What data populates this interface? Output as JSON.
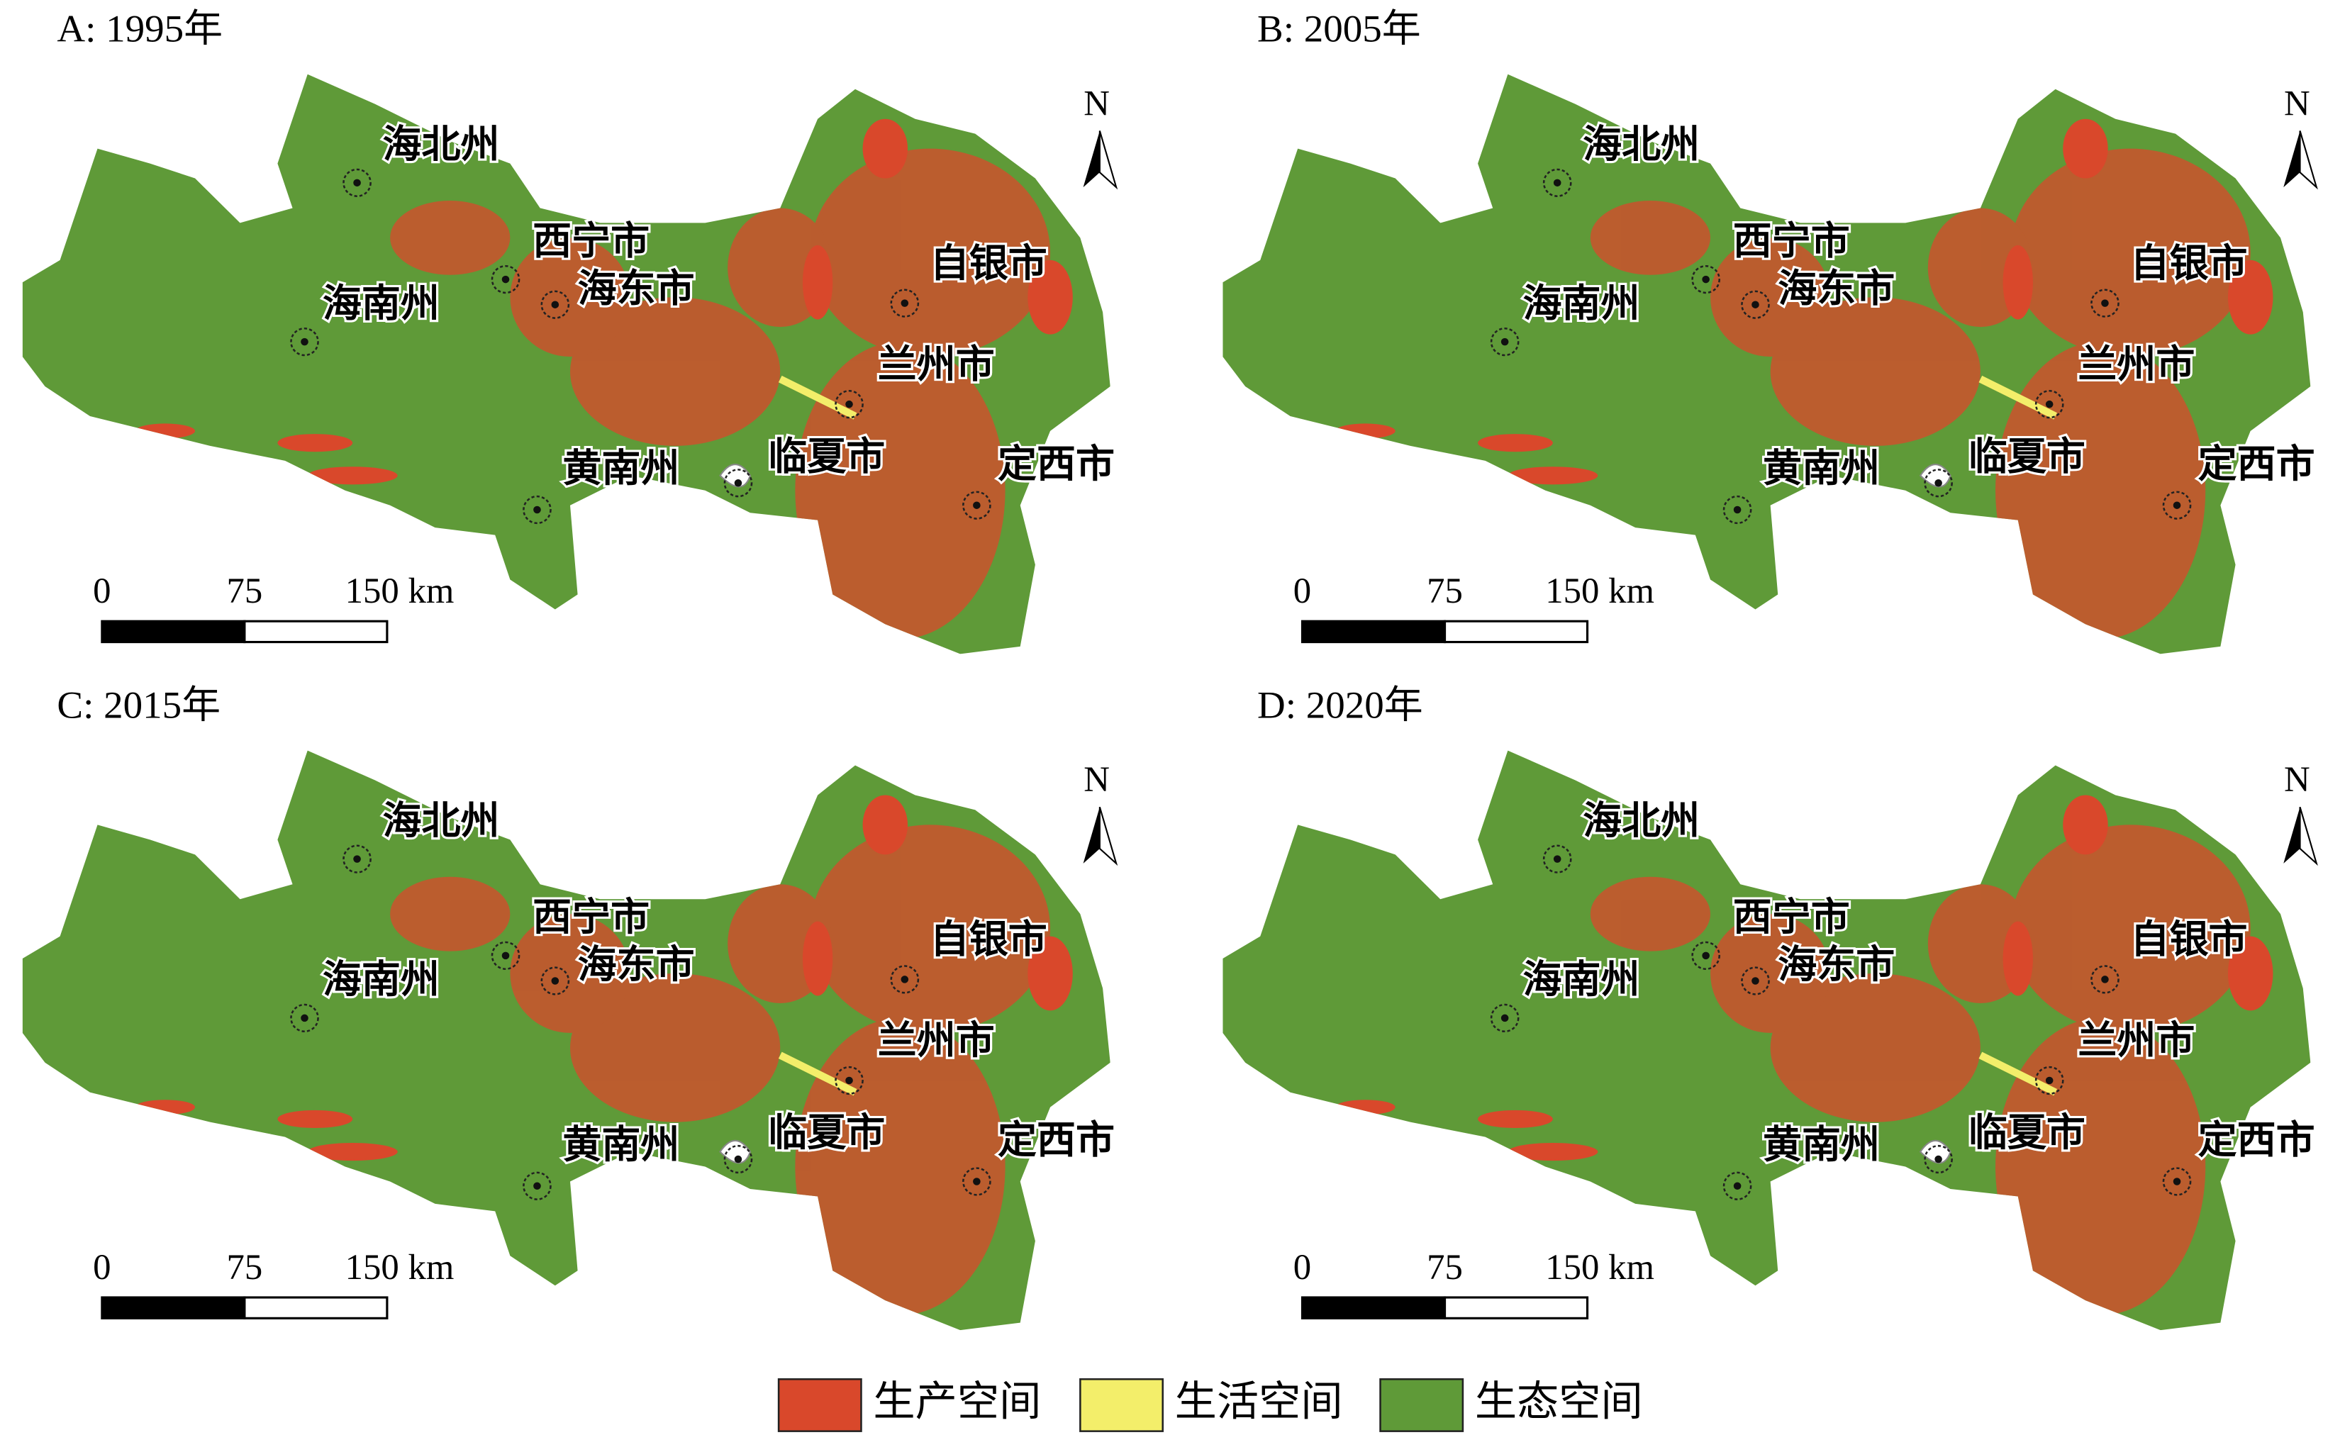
{
  "panels": [
    {
      "title": "A: 1995年"
    },
    {
      "title": "B: 2005年"
    },
    {
      "title": "C: 2015年"
    },
    {
      "title": "D: 2020年"
    }
  ],
  "cities": [
    "海北州",
    "西宁市",
    "海东市",
    "海南州",
    "自银市",
    "兰州市",
    "黄南州",
    "临夏市",
    "定西市"
  ],
  "north": "N",
  "scale_bar": {
    "ticks": [
      0,
      75,
      {
        "value": 150,
        "label": "150 km"
      }
    ]
  },
  "legend": [
    {
      "label": "生产空间",
      "color": "#d9482b"
    },
    {
      "label": "生活空间",
      "color": "#f3ee6a"
    },
    {
      "label": "生态空间",
      "color": "#5f9a38"
    }
  ]
}
